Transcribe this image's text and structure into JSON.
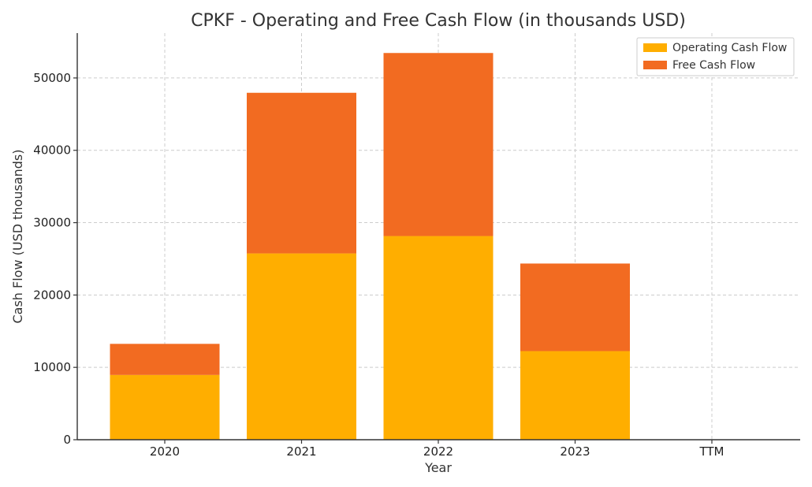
{
  "chart_data": {
    "type": "bar",
    "stacked": true,
    "title": "CPKF - Operating and Free Cash Flow (in thousands USD)",
    "xlabel": "Year",
    "ylabel": "Cash Flow (USD thousands)",
    "categories": [
      "2020",
      "2021",
      "2022",
      "2023",
      "TTM"
    ],
    "series": [
      {
        "name": "Operating Cash Flow",
        "color": "#ffae00",
        "values": [
          8950,
          25750,
          28150,
          12250,
          0
        ]
      },
      {
        "name": "Free Cash Flow",
        "color": "#f26b21",
        "values": [
          4300,
          22200,
          25300,
          12100,
          0
        ]
      }
    ],
    "ylim": [
      0,
      56200
    ],
    "yticks": [
      0,
      10000,
      20000,
      30000,
      40000,
      50000
    ],
    "grid": true,
    "legend": "top-right"
  }
}
